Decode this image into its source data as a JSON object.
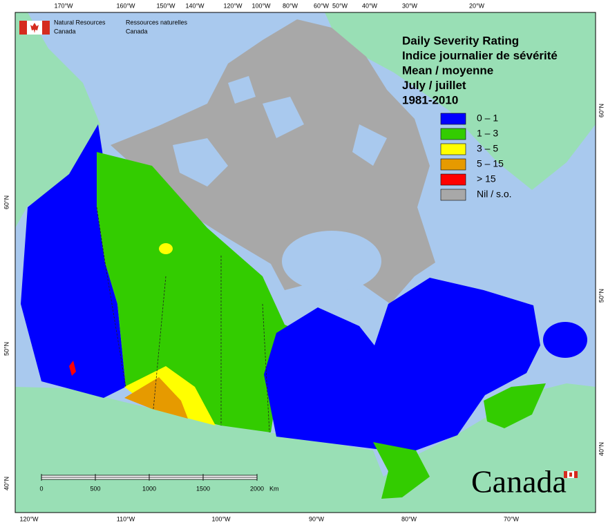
{
  "header": {
    "agency_en": [
      "Natural Resources",
      "Canada"
    ],
    "agency_fr": [
      "Ressources naturelles",
      "Canada"
    ]
  },
  "title": [
    "Daily Severity Rating",
    "Indice journalier de sévérité",
    "Mean / moyenne",
    "July / juillet",
    "1981-2010"
  ],
  "legend": [
    {
      "label": "0 – 1",
      "color": "#0000ff"
    },
    {
      "label": "1 – 3",
      "color": "#33cc00"
    },
    {
      "label": "3 – 5",
      "color": "#ffff00"
    },
    {
      "label": "5 – 15",
      "color": "#e69a00"
    },
    {
      "label": "> 15",
      "color": "#ff0000"
    },
    {
      "label": "Nil / s.o.",
      "color": "#a8a8a8"
    }
  ],
  "graticule": {
    "top": [
      "170°W",
      "160°W",
      "150°W",
      "140°W",
      "120°W",
      "100°W",
      "80°W",
      "60°W",
      "50°W",
      "40°W",
      "30°W",
      "20°W"
    ],
    "bottom": [
      "120°W",
      "110°W",
      "100°W",
      "90°W",
      "80°W",
      "70°W"
    ],
    "left": [
      "60°N",
      "50°N",
      "40°N"
    ],
    "right": [
      "60°N",
      "50°N",
      "40°N"
    ]
  },
  "scale_bar": {
    "ticks": [
      0,
      500,
      1000,
      1500,
      2000
    ],
    "unit": "Km"
  },
  "wordmark": "Canada"
}
